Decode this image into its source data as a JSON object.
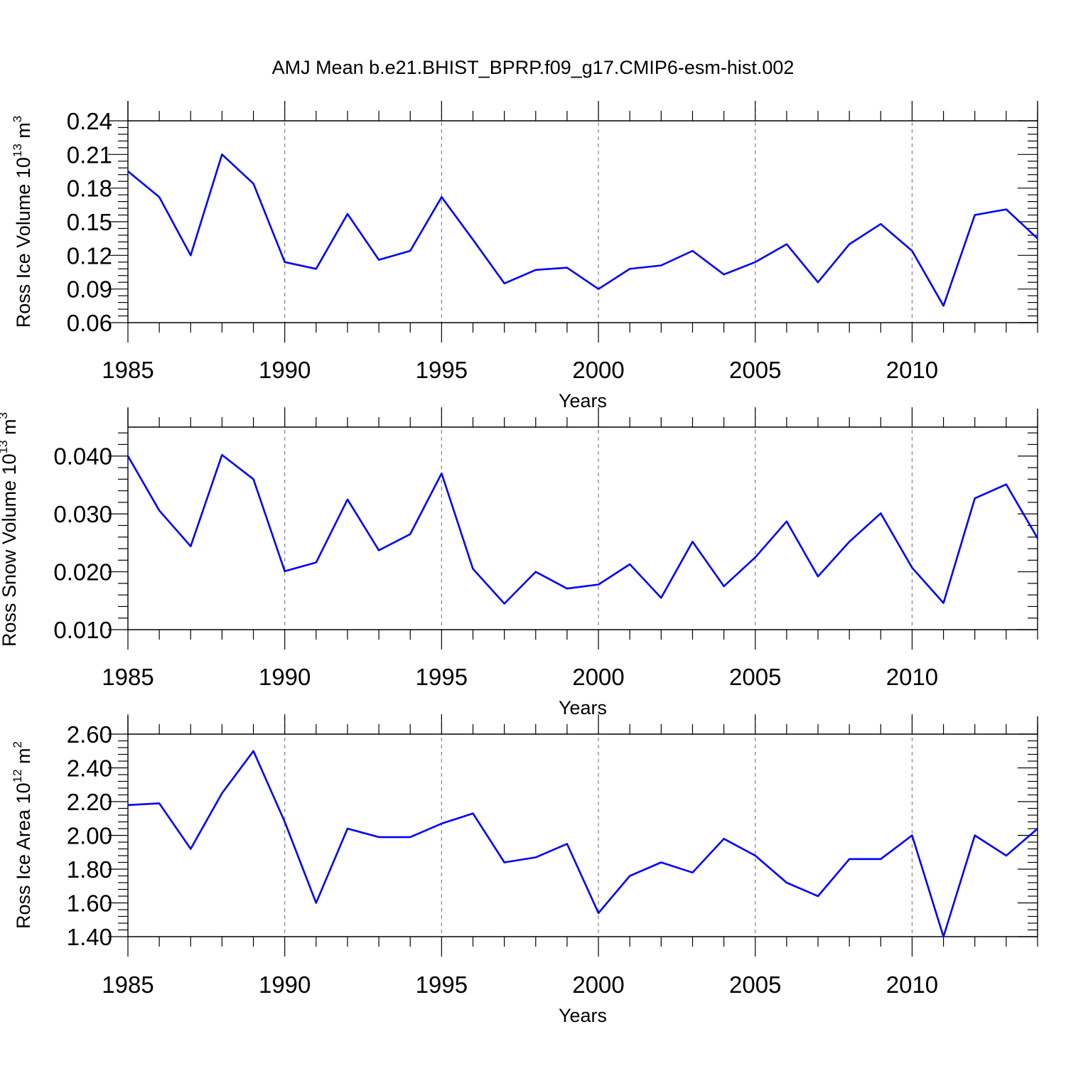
{
  "title": "AMJ Mean b.e21.BHIST_BPRP.f09_g17.CMIP6-esm-hist.002",
  "colors": {
    "line": "#0000ff",
    "axis": "#000000",
    "grid": "#808080"
  },
  "chart_data": [
    {
      "type": "line",
      "ylabel": {
        "base": "Ross Ice Volume 10",
        "exp": "13",
        "unit": " m",
        "unit_exp": "3"
      },
      "xlabel": "Years",
      "xlim": [
        1985,
        2014
      ],
      "ylim": [
        0.06,
        0.24
      ],
      "yticks": [
        "0.06",
        "0.09",
        "0.12",
        "0.15",
        "0.18",
        "0.21",
        "0.24"
      ],
      "xticks": [
        "1985",
        "1990",
        "1995",
        "2000",
        "2005",
        "2010"
      ],
      "grid": "vertical dashed at major x ticks",
      "series": [
        {
          "x": [
            1985,
            1986,
            1987,
            1988,
            1989,
            1990,
            1991,
            1992,
            1993,
            1994,
            1995,
            1996,
            1997,
            1998,
            1999,
            2000,
            2001,
            2002,
            2003,
            2004,
            2005,
            2006,
            2007,
            2008,
            2009,
            2010,
            2011,
            2012,
            2013,
            2014
          ],
          "values": [
            0.195,
            0.172,
            0.12,
            0.21,
            0.184,
            0.114,
            0.108,
            0.157,
            0.116,
            0.124,
            0.172,
            0.134,
            0.095,
            0.107,
            0.109,
            0.09,
            0.108,
            0.111,
            0.124,
            0.103,
            0.114,
            0.13,
            0.096,
            0.13,
            0.148,
            0.124,
            0.075,
            0.156,
            0.161,
            0.135
          ]
        }
      ]
    },
    {
      "type": "line",
      "ylabel": {
        "base": "Ross Snow Volume 10",
        "exp": "13",
        "unit": " m",
        "unit_exp": "3"
      },
      "xlabel": "Years",
      "xlim": [
        1985,
        2014
      ],
      "ylim": [
        0.01,
        0.045
      ],
      "yticks": [
        "0.010",
        "0.020",
        "0.030",
        "0.040"
      ],
      "yticks_values": [
        0.01,
        0.02,
        0.03,
        0.04
      ],
      "xticks": [
        "1985",
        "1990",
        "1995",
        "2000",
        "2005",
        "2010"
      ],
      "grid": "vertical dashed at major x ticks",
      "series": [
        {
          "x": [
            1985,
            1986,
            1987,
            1988,
            1989,
            1990,
            1991,
            1992,
            1993,
            1994,
            1995,
            1996,
            1997,
            1998,
            1999,
            2000,
            2001,
            2002,
            2003,
            2004,
            2005,
            2006,
            2007,
            2008,
            2009,
            2010,
            2011,
            2012,
            2013,
            2014
          ],
          "values": [
            0.04,
            0.0306,
            0.0244,
            0.0402,
            0.036,
            0.0201,
            0.0216,
            0.0325,
            0.0237,
            0.0265,
            0.037,
            0.0205,
            0.0145,
            0.02,
            0.0171,
            0.0178,
            0.0213,
            0.0155,
            0.0252,
            0.0175,
            0.0225,
            0.0287,
            0.0192,
            0.0252,
            0.0301,
            0.0207,
            0.0146,
            0.0327,
            0.0351,
            0.0258
          ]
        }
      ]
    },
    {
      "type": "line",
      "ylabel": {
        "base": "Ross Ice Area 10",
        "exp": "12",
        "unit": " m",
        "unit_exp": "2"
      },
      "xlabel": "Years",
      "xlim": [
        1985,
        2014
      ],
      "ylim": [
        1.4,
        2.6
      ],
      "yticks": [
        "1.40",
        "1.60",
        "1.80",
        "2.00",
        "2.20",
        "2.40",
        "2.60"
      ],
      "xticks": [
        "1985",
        "1990",
        "1995",
        "2000",
        "2005",
        "2010"
      ],
      "grid": "vertical dashed at major x ticks",
      "series": [
        {
          "x": [
            1985,
            1986,
            1987,
            1988,
            1989,
            1990,
            1991,
            1992,
            1993,
            1994,
            1995,
            1996,
            1997,
            1998,
            1999,
            2000,
            2001,
            2002,
            2003,
            2004,
            2005,
            2006,
            2007,
            2008,
            2009,
            2010,
            2011,
            2012,
            2013,
            2014
          ],
          "values": [
            2.18,
            2.19,
            1.92,
            2.25,
            2.5,
            2.08,
            1.6,
            2.04,
            1.99,
            1.99,
            2.07,
            2.13,
            1.84,
            1.87,
            1.95,
            1.54,
            1.76,
            1.84,
            1.78,
            1.98,
            1.88,
            1.72,
            1.64,
            1.86,
            1.86,
            2.0,
            1.4,
            2.0,
            1.88,
            2.04
          ]
        }
      ]
    }
  ]
}
